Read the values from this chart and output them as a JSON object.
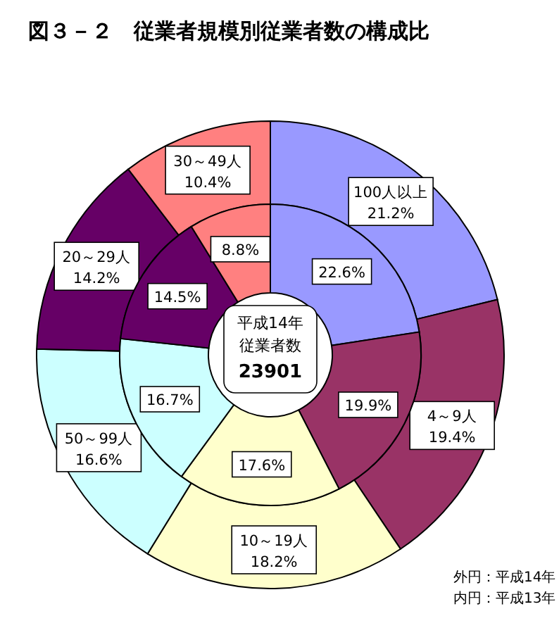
{
  "chart_data": {
    "type": "donut",
    "title": "図３－２　従業者規模別従業者数の構成比",
    "categories": [
      "100人以上",
      "4～9人",
      "10～19人",
      "50～99人",
      "20～29人",
      "30～49人"
    ],
    "colors": [
      "#9999ff",
      "#993366",
      "#ffffcc",
      "#ccffff",
      "#660066",
      "#ff8080"
    ],
    "series": [
      {
        "values": [
          21.2,
          19.4,
          18.2,
          16.6,
          14.2,
          10.4
        ],
        "value_labels": [
          "21.2%",
          "19.4%",
          "18.2%",
          "16.6%",
          "14.2%",
          "10.4%"
        ]
      },
      {
        "values": [
          22.6,
          19.9,
          17.6,
          16.7,
          14.5,
          8.8
        ],
        "value_labels": [
          "22.6%",
          "19.9%",
          "17.6%",
          "16.7%",
          "14.5%",
          "8.8%"
        ]
      }
    ],
    "annotations": [
      "平成14年",
      "従業者数",
      "23901",
      "外円：平成14年",
      "内円：平成13年"
    ]
  }
}
